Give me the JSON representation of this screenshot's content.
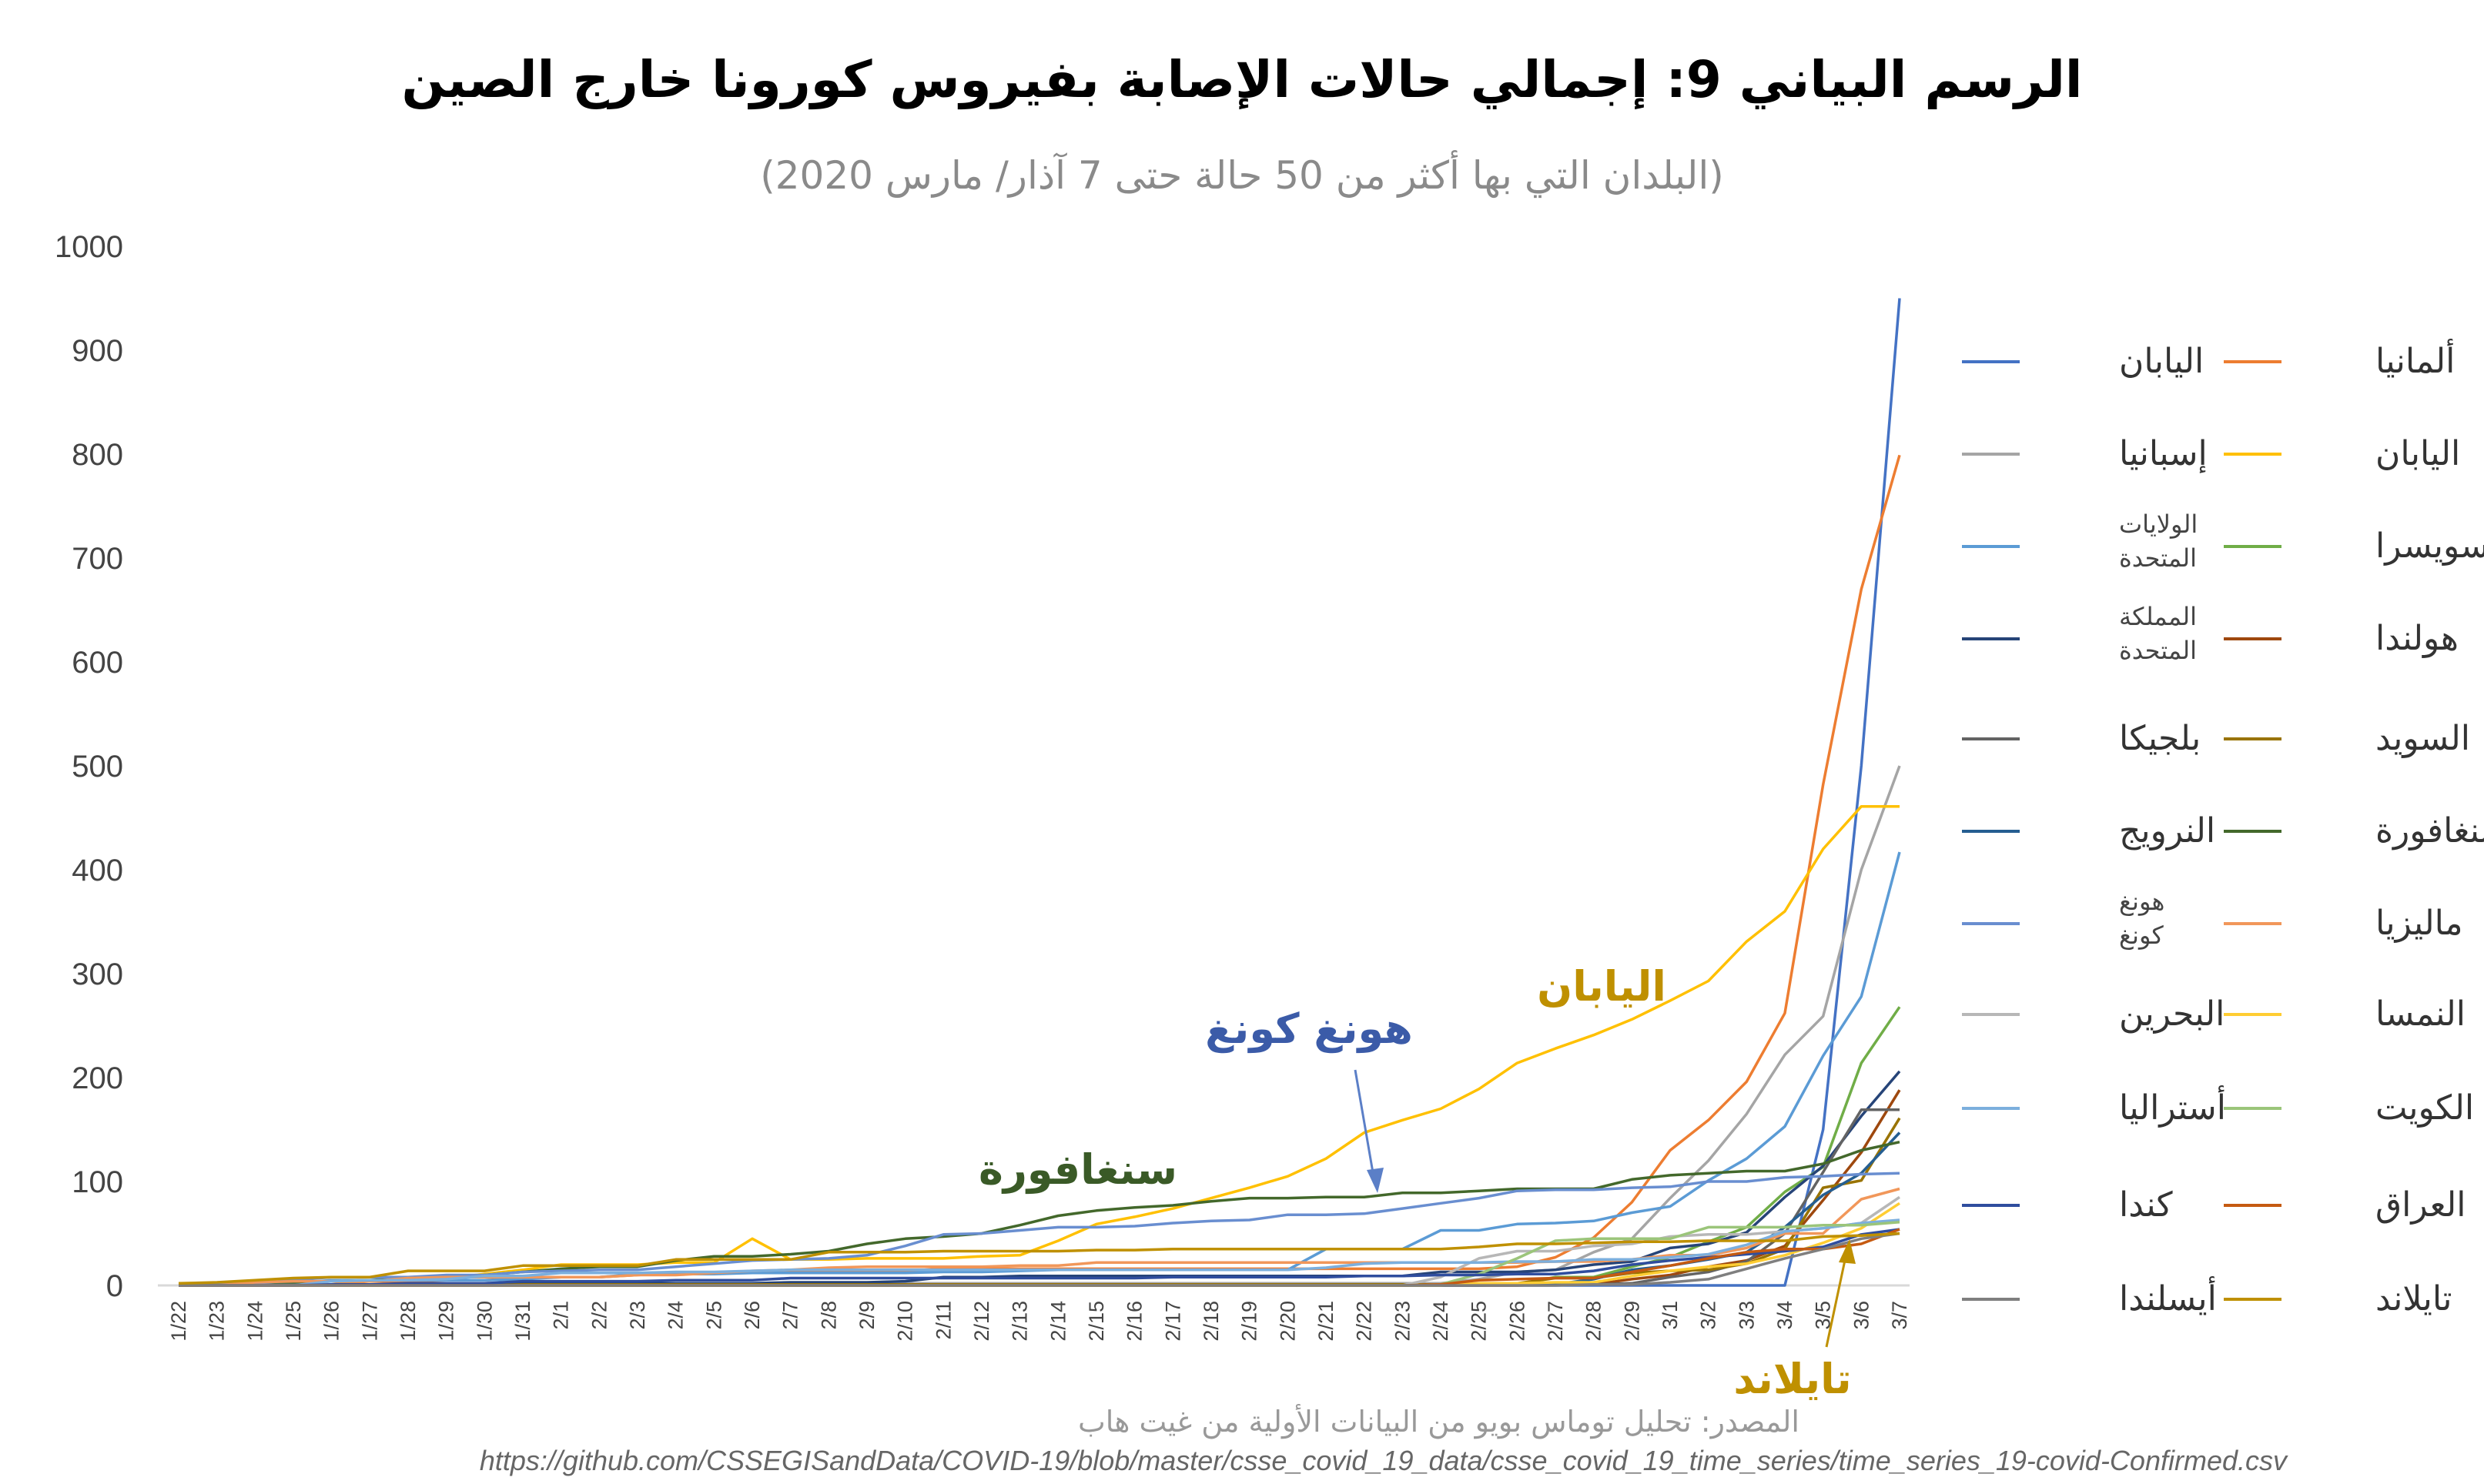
{
  "chart_data": {
    "type": "line",
    "title": "الرسم البياني 9: إجمالي حالات الإصابة بفيروس كورونا خارج الصين",
    "subtitle": "(البلدان التي بها أكثر من 50 حالة حتى 7 آذار/ مارس 2020)",
    "ylim": [
      0,
      1000
    ],
    "yticks": [
      "0",
      "100",
      "200",
      "300",
      "400",
      "500",
      "600",
      "700",
      "800",
      "900",
      "1000"
    ],
    "categories": [
      "1/22",
      "1/23",
      "1/24",
      "1/25",
      "1/26",
      "1/27",
      "1/28",
      "1/29",
      "1/30",
      "1/31",
      "2/1",
      "2/2",
      "2/3",
      "2/4",
      "2/5",
      "2/6",
      "2/7",
      "2/8",
      "2/9",
      "2/10",
      "2/11",
      "2/12",
      "2/13",
      "2/14",
      "2/15",
      "2/16",
      "2/17",
      "2/18",
      "2/19",
      "2/20",
      "2/21",
      "2/22",
      "2/23",
      "2/24",
      "2/25",
      "2/26",
      "2/27",
      "2/28",
      "2/29",
      "3/1",
      "3/2",
      "3/3",
      "3/4",
      "3/5",
      "3/6",
      "3/7"
    ],
    "grid": false,
    "legend_position": "right",
    "series": [
      {
        "name": "اليابان",
        "color": "#4472c4",
        "values": [
          0,
          0,
          0,
          0,
          0,
          0,
          0,
          0,
          0,
          0,
          0,
          0,
          0,
          0,
          0,
          0,
          0,
          0,
          0,
          0,
          0,
          0,
          0,
          0,
          0,
          0,
          0,
          0,
          0,
          0,
          0,
          0,
          0,
          0,
          0,
          0,
          0,
          0,
          0,
          0,
          0,
          0,
          0,
          150,
          500,
          950
        ],
        "dx": -1
      },
      {
        "name": "ألمانيا",
        "color": "#ed7d31",
        "values": [
          0,
          0,
          0,
          0,
          1,
          4,
          4,
          5,
          5,
          7,
          8,
          8,
          10,
          12,
          12,
          12,
          13,
          13,
          14,
          14,
          16,
          16,
          16,
          16,
          16,
          16,
          16,
          16,
          16,
          16,
          16,
          16,
          16,
          16,
          16,
          18,
          27,
          46,
          80,
          130,
          159,
          196,
          262,
          482,
          670,
          799
        ],
        "dx": 1
      },
      {
        "name": "إسبانيا",
        "color": "#a5a5a5",
        "values": [
          0,
          0,
          0,
          0,
          0,
          0,
          0,
          0,
          0,
          0,
          1,
          1,
          1,
          1,
          1,
          1,
          1,
          1,
          1,
          2,
          2,
          2,
          2,
          2,
          2,
          2,
          2,
          2,
          2,
          2,
          2,
          2,
          2,
          2,
          6,
          13,
          15,
          32,
          45,
          84,
          120,
          165,
          222,
          259,
          400,
          500
        ],
        "dx": 0
      },
      {
        "name": "اليابان",
        "color": "#ffc000",
        "values": [
          2,
          2,
          2,
          2,
          4,
          4,
          7,
          7,
          11,
          15,
          20,
          20,
          20,
          22,
          22,
          45,
          25,
          25,
          26,
          26,
          26,
          28,
          29,
          43,
          59,
          66,
          74,
          84,
          94,
          105,
          122,
          147,
          159,
          170,
          189,
          214,
          228,
          241,
          256,
          274,
          293,
          331,
          360,
          420,
          461,
          461
        ],
        "dx": 0
      },
      {
        "name": "الولايات المتحدة",
        "color": "#5b9bd5",
        "values": [
          1,
          1,
          2,
          2,
          5,
          5,
          5,
          5,
          5,
          6,
          8,
          8,
          11,
          11,
          11,
          12,
          12,
          12,
          12,
          12,
          13,
          13,
          14,
          15,
          15,
          15,
          15,
          15,
          15,
          15,
          35,
          35,
          35,
          53,
          53,
          59,
          60,
          62,
          70,
          76,
          101,
          122,
          153,
          221,
          278,
          417
        ],
        "dx": 0
      },
      {
        "name": "سويسرا",
        "color": "#70ad47",
        "values": [
          0,
          0,
          0,
          0,
          0,
          0,
          0,
          0,
          0,
          0,
          0,
          0,
          0,
          0,
          0,
          0,
          0,
          0,
          0,
          0,
          0,
          0,
          0,
          0,
          0,
          0,
          0,
          0,
          0,
          0,
          0,
          0,
          0,
          0,
          1,
          1,
          8,
          8,
          18,
          27,
          42,
          56,
          90,
          114,
          214,
          268
        ],
        "dx": 0
      },
      {
        "name": "المملكة المتحدة",
        "color": "#264478",
        "values": [
          0,
          0,
          0,
          0,
          0,
          0,
          0,
          0,
          0,
          2,
          2,
          2,
          2,
          2,
          2,
          2,
          3,
          3,
          3,
          4,
          8,
          8,
          9,
          9,
          9,
          9,
          9,
          9,
          9,
          9,
          9,
          9,
          9,
          13,
          13,
          13,
          15,
          20,
          23,
          36,
          40,
          51,
          85,
          115,
          163,
          206
        ],
        "dx": 0
      },
      {
        "name": "هولندا",
        "color": "#9e480e",
        "values": [
          0,
          0,
          0,
          0,
          0,
          0,
          0,
          0,
          0,
          0,
          0,
          0,
          0,
          0,
          0,
          0,
          0,
          0,
          0,
          0,
          0,
          0,
          0,
          0,
          0,
          0,
          0,
          0,
          0,
          0,
          0,
          0,
          0,
          0,
          0,
          0,
          1,
          1,
          6,
          10,
          18,
          24,
          38,
          82,
          128,
          188
        ],
        "dx": 0
      },
      {
        "name": "بلجيكا",
        "color": "#636363",
        "values": [
          0,
          0,
          0,
          0,
          0,
          0,
          0,
          0,
          0,
          0,
          0,
          0,
          0,
          1,
          1,
          1,
          1,
          1,
          1,
          1,
          1,
          1,
          1,
          1,
          1,
          1,
          1,
          1,
          1,
          1,
          1,
          1,
          1,
          1,
          1,
          1,
          1,
          1,
          2,
          8,
          13,
          23,
          50,
          109,
          169,
          169
        ],
        "dx": 0
      },
      {
        "name": "السويد",
        "color": "#997300",
        "values": [
          0,
          0,
          0,
          0,
          0,
          0,
          0,
          0,
          0,
          1,
          1,
          1,
          1,
          1,
          1,
          1,
          1,
          1,
          1,
          1,
          1,
          1,
          1,
          1,
          1,
          1,
          1,
          1,
          1,
          1,
          1,
          1,
          1,
          1,
          1,
          2,
          7,
          7,
          12,
          14,
          15,
          21,
          35,
          94,
          101,
          161
        ],
        "dx": 0
      },
      {
        "name": "النرويج",
        "color": "#255e91",
        "values": [
          0,
          0,
          0,
          0,
          0,
          0,
          0,
          0,
          0,
          0,
          0,
          0,
          0,
          0,
          0,
          0,
          0,
          0,
          0,
          0,
          0,
          0,
          0,
          0,
          0,
          0,
          0,
          0,
          0,
          0,
          0,
          0,
          0,
          0,
          0,
          1,
          1,
          6,
          15,
          19,
          25,
          32,
          56,
          87,
          108,
          147
        ],
        "dx": 0
      },
      {
        "name": "سنغافورة",
        "color": "#43682b",
        "values": [
          0,
          1,
          3,
          3,
          4,
          5,
          7,
          7,
          10,
          13,
          16,
          18,
          18,
          24,
          28,
          28,
          30,
          33,
          40,
          45,
          47,
          50,
          58,
          67,
          72,
          75,
          77,
          81,
          84,
          84,
          85,
          85,
          89,
          89,
          91,
          93,
          93,
          93,
          102,
          106,
          108,
          110,
          110,
          117,
          130,
          138
        ],
        "dx": 0
      },
      {
        "name": "هونغ كونغ",
        "color": "#698ed0",
        "values": [
          0,
          2,
          2,
          5,
          8,
          8,
          8,
          10,
          10,
          13,
          14,
          15,
          15,
          18,
          21,
          24,
          25,
          26,
          29,
          38,
          49,
          50,
          53,
          56,
          56,
          57,
          60,
          62,
          63,
          68,
          68,
          69,
          74,
          79,
          84,
          91,
          92,
          92,
          94,
          95,
          100,
          100,
          104,
          105,
          107,
          108
        ],
        "dx": 0
      },
      {
        "name": "ماليزيا",
        "color": "#f1975a",
        "values": [
          0,
          0,
          3,
          4,
          4,
          4,
          7,
          8,
          8,
          8,
          8,
          8,
          10,
          10,
          12,
          14,
          15,
          17,
          18,
          18,
          18,
          18,
          19,
          19,
          22,
          22,
          22,
          22,
          22,
          22,
          22,
          22,
          22,
          22,
          22,
          22,
          23,
          23,
          25,
          29,
          29,
          36,
          50,
          50,
          83,
          93
        ],
        "dx": 0
      },
      {
        "name": "البحرين",
        "color": "#b7b7b7",
        "values": [
          0,
          0,
          0,
          0,
          0,
          0,
          0,
          0,
          0,
          0,
          0,
          0,
          0,
          0,
          0,
          0,
          0,
          0,
          0,
          0,
          0,
          0,
          0,
          0,
          0,
          0,
          0,
          0,
          0,
          0,
          0,
          0,
          0,
          8,
          26,
          33,
          33,
          38,
          40,
          47,
          49,
          49,
          52,
          55,
          60,
          85
        ],
        "dx": 0
      },
      {
        "name": "النمسا",
        "color": "#ffcd33",
        "values": [
          0,
          0,
          0,
          0,
          0,
          0,
          0,
          0,
          0,
          0,
          0,
          0,
          0,
          0,
          0,
          0,
          0,
          0,
          0,
          0,
          0,
          0,
          0,
          0,
          0,
          0,
          0,
          0,
          0,
          0,
          0,
          0,
          0,
          0,
          2,
          2,
          3,
          3,
          9,
          14,
          18,
          21,
          29,
          41,
          55,
          79
        ],
        "dx": 0
      },
      {
        "name": "أستراليا",
        "color": "#7cafdd",
        "values": [
          0,
          0,
          0,
          0,
          4,
          5,
          5,
          6,
          9,
          9,
          12,
          12,
          12,
          13,
          13,
          14,
          15,
          15,
          15,
          15,
          15,
          15,
          15,
          15,
          15,
          15,
          15,
          15,
          15,
          15,
          17,
          21,
          22,
          22,
          22,
          23,
          23,
          25,
          25,
          27,
          30,
          39,
          52,
          55,
          60,
          63
        ],
        "dx": 0
      },
      {
        "name": "الكويت",
        "color": "#9bc57a",
        "values": [
          0,
          0,
          0,
          0,
          0,
          0,
          0,
          0,
          0,
          0,
          0,
          0,
          0,
          0,
          0,
          0,
          0,
          0,
          0,
          0,
          0,
          0,
          0,
          0,
          0,
          0,
          0,
          0,
          0,
          0,
          0,
          0,
          0,
          1,
          11,
          26,
          43,
          45,
          45,
          45,
          56,
          56,
          56,
          58,
          58,
          61
        ],
        "dx": 0
      },
      {
        "name": "كندا",
        "color": "#2f4d9e",
        "values": [
          0,
          0,
          0,
          0,
          1,
          1,
          2,
          2,
          2,
          4,
          4,
          4,
          4,
          5,
          5,
          5,
          7,
          7,
          7,
          7,
          7,
          7,
          7,
          7,
          7,
          7,
          8,
          8,
          8,
          8,
          8,
          9,
          9,
          10,
          10,
          11,
          11,
          14,
          20,
          24,
          27,
          30,
          33,
          37,
          49,
          54
        ],
        "dx": 0
      },
      {
        "name": "العراق",
        "color": "#c55a11",
        "values": [
          0,
          0,
          0,
          0,
          0,
          0,
          0,
          0,
          0,
          0,
          0,
          0,
          0,
          0,
          0,
          0,
          0,
          0,
          0,
          0,
          0,
          0,
          0,
          0,
          0,
          0,
          0,
          0,
          0,
          0,
          0,
          0,
          0,
          1,
          5,
          6,
          7,
          7,
          13,
          19,
          26,
          32,
          35,
          35,
          40,
          54
        ],
        "dx": 0
      },
      {
        "name": "أيسلندا",
        "color": "#7f7f7f",
        "values": [
          0,
          0,
          0,
          0,
          0,
          0,
          0,
          0,
          0,
          0,
          0,
          0,
          0,
          0,
          0,
          0,
          0,
          0,
          0,
          0,
          0,
          0,
          0,
          0,
          0,
          0,
          0,
          0,
          0,
          0,
          0,
          0,
          0,
          0,
          0,
          0,
          0,
          1,
          1,
          3,
          6,
          16,
          26,
          35,
          45,
          50
        ],
        "dx": 0
      },
      {
        "name": "تايلاند",
        "color": "#bf9000",
        "values": [
          2,
          3,
          5,
          7,
          8,
          8,
          14,
          14,
          14,
          19,
          19,
          19,
          19,
          25,
          25,
          25,
          25,
          32,
          32,
          32,
          33,
          33,
          33,
          33,
          34,
          34,
          35,
          35,
          35,
          35,
          35,
          35,
          35,
          35,
          37,
          40,
          40,
          41,
          42,
          42,
          43,
          43,
          43,
          47,
          48,
          50
        ],
        "dx": 0
      }
    ],
    "annotations": [
      {
        "label": "اليابان",
        "color": "#bf9000"
      },
      {
        "label": "هونغ كونغ",
        "color": "#3b5ba8"
      },
      {
        "label": "سنغافورة",
        "color": "#3a5a27"
      },
      {
        "label": "تايلاند",
        "color": "#bf9000"
      }
    ],
    "source": "المصدر: تحليل توماس بويو من البيانات الأولية من غيت هاب",
    "source_url": "https://github.com/CSSEGISandData/COVID-19/blob/master/csse_covid_19_data/csse_covid_19_time_series/time_series_19-covid-Confirmed.csv"
  }
}
